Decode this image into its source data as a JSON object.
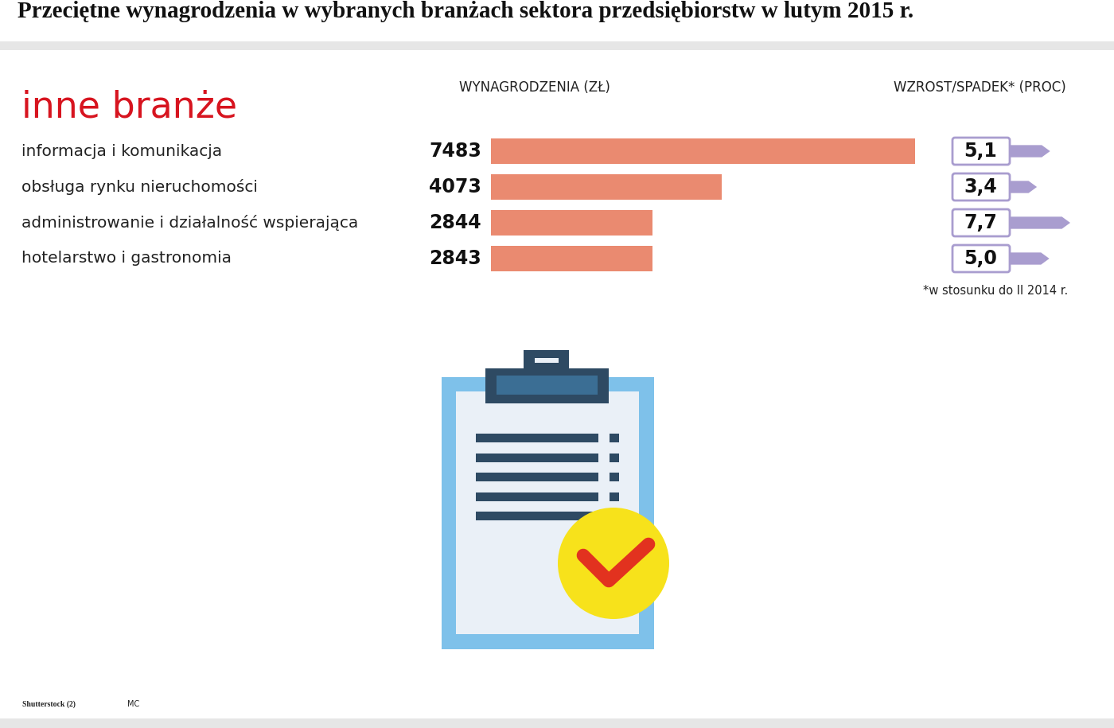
{
  "chart_data": {
    "type": "bar",
    "orientation": "horizontal",
    "title": "Przeciętne wynagrodzenia w wybranych branżach sektora przedsiębiorstw w lutym 2015 r.",
    "subtitle": "inne branże",
    "value_header": "WYNAGRODZENIA (ZŁ)",
    "change_header": "WZROST/SPADEK* (PROC)",
    "categories": [
      "informacja i komunikacja",
      "obsługa rynku nieruchomości",
      "administrowanie i działalność wspierająca",
      "hotelarstwo i gastronomia"
    ],
    "values": [
      7483,
      4073,
      2844,
      2843
    ],
    "change": [
      5.1,
      3.4,
      7.7,
      5.0
    ],
    "change_labels": [
      "5,1",
      "3,4",
      "7,7",
      "5,0"
    ],
    "note": "*w stosunku do II 2014 r.",
    "source": "Shutterstock (2)",
    "credits": "MC",
    "color": "#ea8a70",
    "data_labels": true,
    "tick_labels": false
  }
}
